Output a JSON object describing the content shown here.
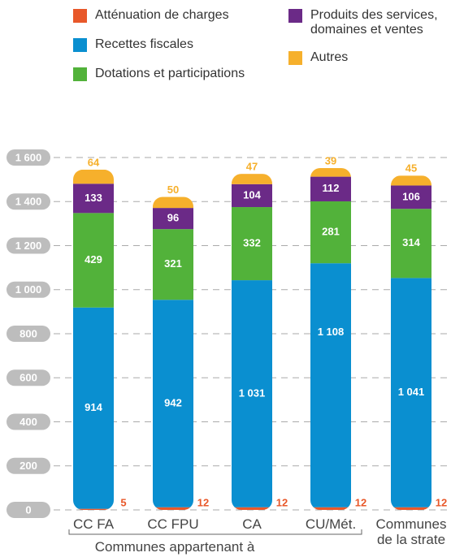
{
  "chart_data": {
    "type": "stacked_bar",
    "categories": [
      "CC FA",
      "CC FPU",
      "CA",
      "CU/Mét.",
      "Communes de la strate"
    ],
    "series": [
      {
        "name": "Atténuation de charges",
        "color": "#e8582a",
        "values": [
          5,
          12,
          12,
          12,
          12
        ]
      },
      {
        "name": "Recettes fiscales",
        "color": "#0a8fd0",
        "values": [
          914,
          942,
          1031,
          1108,
          1041
        ],
        "value_labels": [
          "914",
          "942",
          "1 031",
          "1 108",
          "1 041"
        ]
      },
      {
        "name": "Dotations et participations",
        "color": "#52b23a",
        "values": [
          429,
          321,
          332,
          281,
          314
        ]
      },
      {
        "name": "Produits des services, domaines et ventes",
        "color": "#6b2a87",
        "values": [
          133,
          96,
          104,
          112,
          106
        ]
      },
      {
        "name": "Autres",
        "color": "#f6b02c",
        "values": [
          64,
          50,
          47,
          39,
          45
        ]
      }
    ],
    "ylim": [
      0,
      1600
    ],
    "yticks": [
      0,
      200,
      400,
      600,
      800,
      {
        "value": 1000,
        "label": "1 000"
      },
      {
        "value": 1200,
        "label": "1 200"
      },
      {
        "value": 1400,
        "label": "1 400"
      },
      {
        "value": 1600,
        "label": "1 600"
      }
    ],
    "grid": true,
    "group_label": "Communes appartenant à"
  }
}
